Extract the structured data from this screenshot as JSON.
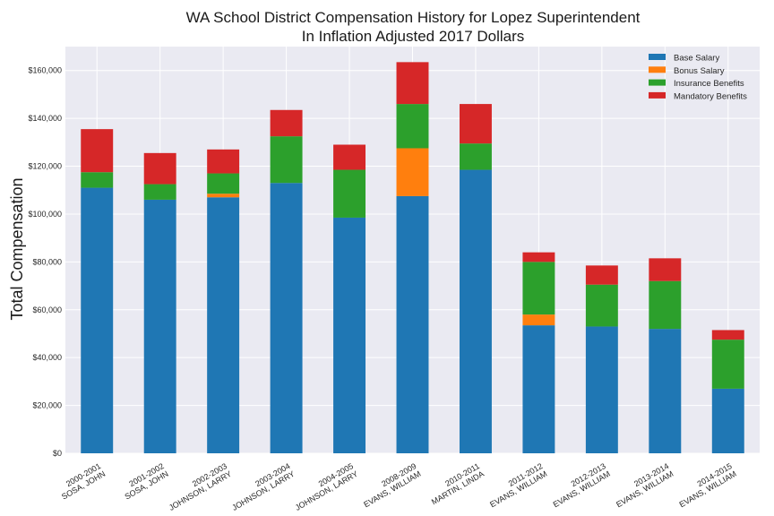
{
  "chart_data": {
    "type": "bar",
    "stacked": true,
    "title": "WA School District Compensation History for Lopez Superintendent",
    "subtitle": "In Inflation Adjusted 2017 Dollars",
    "xlabel": "",
    "ylabel": "Total Compensation",
    "ylim": [
      0,
      170000
    ],
    "yticks": [
      0,
      20000,
      40000,
      60000,
      80000,
      100000,
      120000,
      140000,
      160000
    ],
    "ytick_labels": [
      "$0",
      "$20,000",
      "$40,000",
      "$60,000",
      "$80,000",
      "$100,000",
      "$120,000",
      "$140,000",
      "$160,000"
    ],
    "grid": true,
    "legend_position": "top-right",
    "categories": [
      [
        "2000-2001",
        "SOSA, JOHN"
      ],
      [
        "2001-2002",
        "SOSA, JOHN"
      ],
      [
        "2002-2003",
        "JOHNSON, LARRY"
      ],
      [
        "2003-2004",
        "JOHNSON, LARRY"
      ],
      [
        "2004-2005",
        "JOHNSON, LARRY"
      ],
      [
        "2008-2009",
        "EVANS, WILLIAM"
      ],
      [
        "2010-2011",
        "MARTIN, LINDA"
      ],
      [
        "2011-2012",
        "EVANS, WILLIAM"
      ],
      [
        "2012-2013",
        "EVANS, WILLIAM"
      ],
      [
        "2013-2014",
        "EVANS, WILLIAM"
      ],
      [
        "2014-2015",
        "EVANS, WILLIAM"
      ]
    ],
    "series": [
      {
        "name": "Base Salary",
        "color": "#1f77b4",
        "values": [
          111000,
          106000,
          107000,
          113000,
          98500,
          107500,
          118500,
          53500,
          53000,
          52000,
          27000
        ]
      },
      {
        "name": "Bonus Salary",
        "color": "#ff7f0e",
        "values": [
          0,
          0,
          1500,
          0,
          0,
          20000,
          0,
          4500,
          0,
          0,
          0
        ]
      },
      {
        "name": "Insurance Benefits",
        "color": "#2ca02c",
        "values": [
          6500,
          6500,
          8500,
          19500,
          20000,
          18500,
          11000,
          22000,
          17500,
          20000,
          20500
        ]
      },
      {
        "name": "Mandatory Benefits",
        "color": "#d62728",
        "values": [
          18000,
          13000,
          10000,
          11000,
          10500,
          17500,
          16500,
          4000,
          8000,
          9500,
          4000
        ]
      }
    ]
  }
}
